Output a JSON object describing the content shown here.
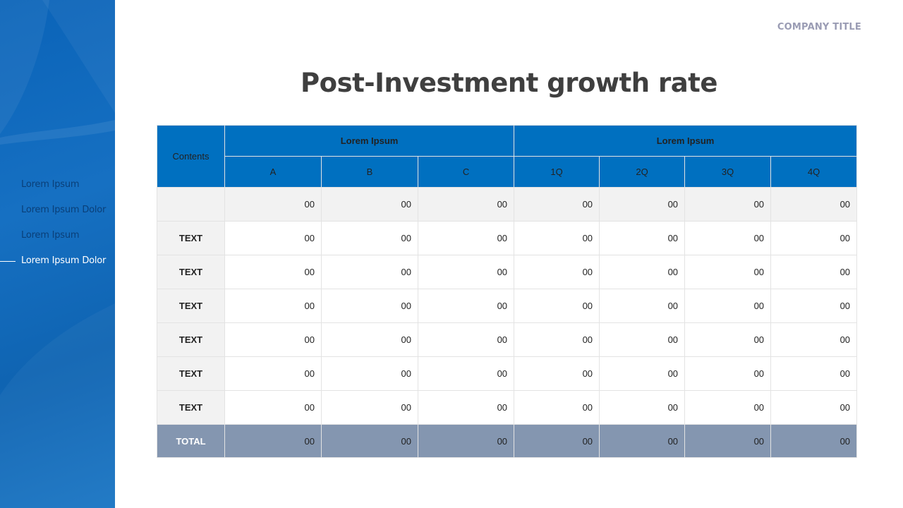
{
  "header": {
    "company_title": "COMPANY TITLE",
    "title": "Post-Investment growth rate"
  },
  "sidebar": {
    "items": [
      {
        "label": "Lorem Ipsum",
        "active": false
      },
      {
        "label": "Lorem Ipsum Dolor",
        "active": false
      },
      {
        "label": "Lorem Ipsum",
        "active": false
      },
      {
        "label": "Lorem Ipsum Dolor",
        "active": true
      }
    ]
  },
  "table": {
    "contents_header": "Contents",
    "group1": {
      "label": "Lorem Ipsum",
      "columns": [
        "A",
        "B",
        "C"
      ]
    },
    "group2": {
      "label": "Lorem Ipsum",
      "columns": [
        "1Q",
        "2Q",
        "3Q",
        "4Q"
      ]
    },
    "rows": [
      {
        "label": "",
        "values": [
          "00",
          "00",
          "00",
          "00",
          "00",
          "00",
          "00"
        ]
      },
      {
        "label": "TEXT",
        "values": [
          "00",
          "00",
          "00",
          "00",
          "00",
          "00",
          "00"
        ]
      },
      {
        "label": "TEXT",
        "values": [
          "00",
          "00",
          "00",
          "00",
          "00",
          "00",
          "00"
        ]
      },
      {
        "label": "TEXT",
        "values": [
          "00",
          "00",
          "00",
          "00",
          "00",
          "00",
          "00"
        ]
      },
      {
        "label": "TEXT",
        "values": [
          "00",
          "00",
          "00",
          "00",
          "00",
          "00",
          "00"
        ]
      },
      {
        "label": "TEXT",
        "values": [
          "00",
          "00",
          "00",
          "00",
          "00",
          "00",
          "00"
        ]
      },
      {
        "label": "TEXT",
        "values": [
          "00",
          "00",
          "00",
          "00",
          "00",
          "00",
          "00"
        ]
      }
    ],
    "total": {
      "label": "TOTAL",
      "values": [
        "00",
        "00",
        "00",
        "00",
        "00",
        "00",
        "00"
      ]
    }
  },
  "colors": {
    "accent": "#0070c0",
    "sidebar": "#1670c2",
    "total_row": "#8496b0",
    "label_bg": "#f2f2f2"
  }
}
